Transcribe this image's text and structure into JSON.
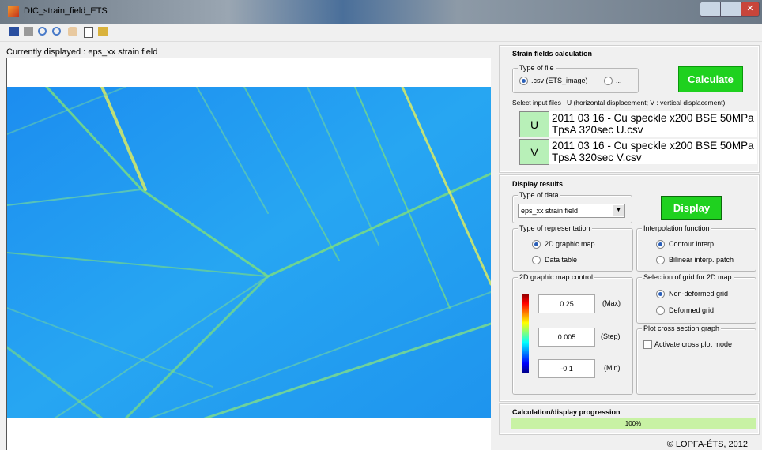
{
  "window": {
    "title": "DIC_strain_field_ETS"
  },
  "display": {
    "label": "Currently displayed : eps_xx strain field"
  },
  "strain_calc": {
    "title": "Strain fields calculation",
    "file_type": {
      "legend": "Type of file",
      "options": [
        ".csv (ETS_image)",
        "..."
      ]
    },
    "calculate": "Calculate",
    "select_hint": "Select input files : U (horizontal displacement; V : vertical displacement)",
    "files": [
      {
        "button": "U",
        "name": "2011 03 16 - Cu speckle x200 BSE 50MPa TpsA 320sec  U.csv"
      },
      {
        "button": "V",
        "name": "2011 03 16 - Cu speckle x200 BSE 50MPa TpsA 320sec  V.csv"
      }
    ]
  },
  "display_results": {
    "title": "Display results",
    "data_type": {
      "legend": "Type of data",
      "selected": "eps_xx strain field"
    },
    "display_button": "Display",
    "representation": {
      "legend": "Type of representation",
      "options": [
        "2D graphic map",
        "Data table"
      ]
    },
    "interpolation": {
      "legend": "Interpolation function",
      "options": [
        "Contour interp.",
        "Bilinear interp. patch"
      ]
    },
    "map_control": {
      "legend": "2D graphic map control",
      "fields": [
        {
          "value": "0.25",
          "label": "(Max)"
        },
        {
          "value": "0.005",
          "label": "(Step)"
        },
        {
          "value": "-0.1",
          "label": "(Min)"
        }
      ]
    },
    "grid": {
      "legend": "Selection of grid for 2D map",
      "options": [
        "Non-deformed grid",
        "Deformed grid"
      ]
    },
    "cross_section": {
      "legend": "Plot cross section graph",
      "checkbox": "Activate cross plot mode"
    }
  },
  "progress": {
    "title": "Calculation/display progression",
    "label": "100%"
  },
  "footer": "© LOPFA-ÉTS, 2012"
}
